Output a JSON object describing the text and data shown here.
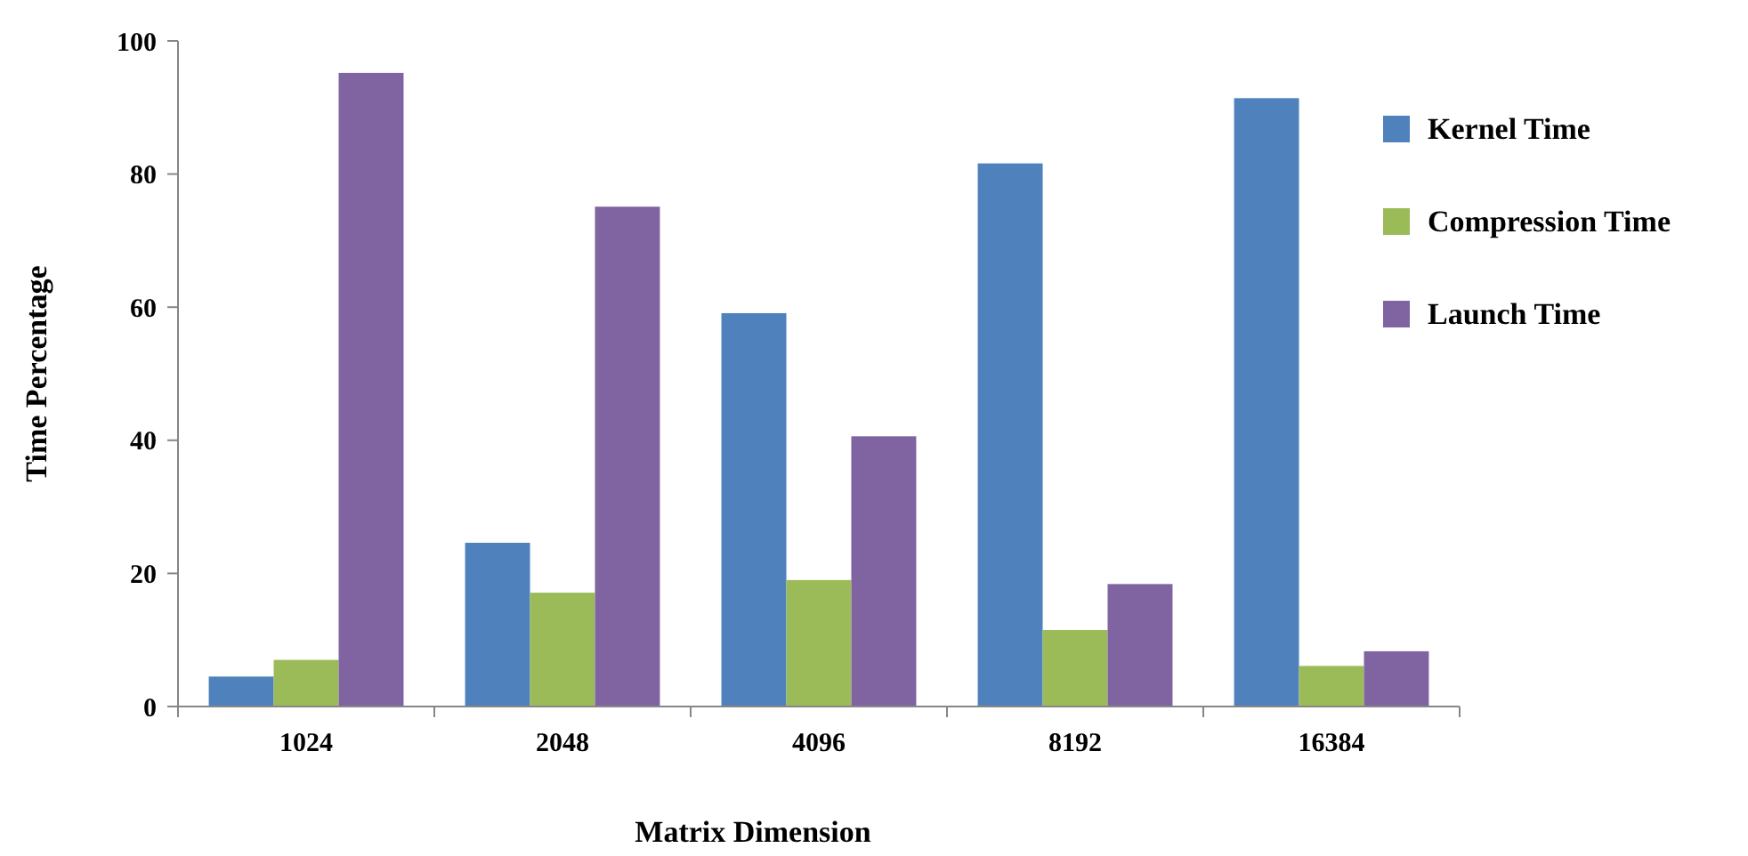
{
  "chart_data": {
    "type": "bar",
    "xlabel": "Matrix Dimension",
    "ylabel": "Time Percentage",
    "categories": [
      "1024",
      "2048",
      "4096",
      "8192",
      "16384"
    ],
    "series": [
      {
        "name": "Kernel Time",
        "color": "#4f81bd",
        "values": [
          4.5,
          24.6,
          59.1,
          81.6,
          91.4
        ]
      },
      {
        "name": "Compression Time",
        "color": "#9bbb59",
        "values": [
          7,
          17.1,
          19,
          11.5,
          6.1
        ]
      },
      {
        "name": "Launch Time",
        "color": "#8064a2",
        "values": [
          95.2,
          75.1,
          40.6,
          18.4,
          8.3
        ]
      }
    ],
    "ylim": [
      0,
      100
    ],
    "yticks": [
      0,
      20,
      40,
      60,
      80,
      100
    ],
    "grid": false,
    "legend": "right"
  }
}
